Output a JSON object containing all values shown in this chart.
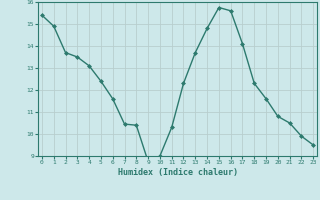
{
  "x": [
    0,
    1,
    2,
    3,
    4,
    5,
    6,
    7,
    8,
    9,
    10,
    11,
    12,
    13,
    14,
    15,
    16,
    17,
    18,
    19,
    20,
    21,
    22,
    23
  ],
  "y": [
    15.4,
    14.9,
    13.7,
    13.5,
    13.1,
    12.4,
    11.6,
    10.45,
    10.4,
    8.75,
    9.0,
    10.3,
    12.3,
    13.7,
    14.8,
    15.75,
    15.6,
    14.1,
    12.3,
    11.6,
    10.8,
    10.5,
    9.9,
    9.5
  ],
  "xlabel": "Humidex (Indice chaleur)",
  "ylim": [
    9,
    16
  ],
  "xlim": [
    -0.3,
    23.3
  ],
  "yticks": [
    9,
    10,
    11,
    12,
    13,
    14,
    15,
    16
  ],
  "xticks": [
    0,
    1,
    2,
    3,
    4,
    5,
    6,
    7,
    8,
    9,
    10,
    11,
    12,
    13,
    14,
    15,
    16,
    17,
    18,
    19,
    20,
    21,
    22,
    23
  ],
  "line_color": "#2d7a6e",
  "marker_color": "#2d7a6e",
  "bg_color": "#cde8ea",
  "grid_color": "#b8cece"
}
